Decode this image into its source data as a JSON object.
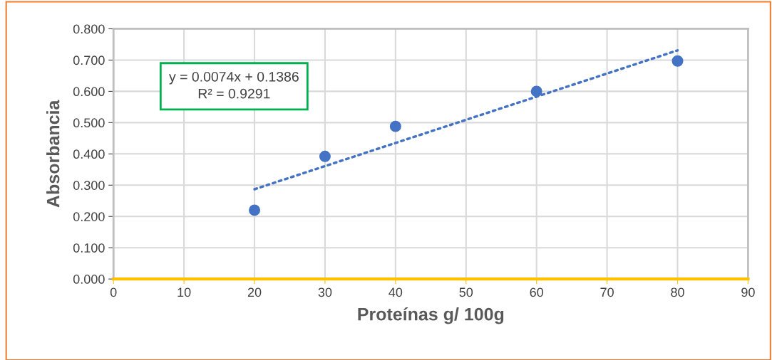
{
  "chart_data": {
    "type": "scatter",
    "xlabel": "Proteínas g/ 100g",
    "ylabel": "Absorbancia",
    "annotations": [
      "y = 0.0074x + 0.1386\nR² = 0.9291"
    ],
    "series": [
      {
        "color": "#4472c4",
        "marker": "circle",
        "x": [
          20,
          30,
          40,
          60,
          80
        ],
        "values": [
          0.22,
          0.392,
          0.488,
          0.6,
          0.697
        ]
      },
      {
        "type": "line",
        "color": "#4472c4",
        "marker": "none",
        "line_style": "dotted",
        "x": [
          20,
          80
        ],
        "values": [
          0.287,
          0.731
        ]
      }
    ],
    "xlim": [
      0,
      90
    ],
    "xticks": [
      0,
      10,
      20,
      30,
      40,
      50,
      60,
      70,
      80,
      90
    ],
    "ylim": [
      0,
      0.8
    ],
    "yticks": [
      {
        "value": 0,
        "label": "0.000"
      },
      {
        "value": 0.1,
        "label": "0.100"
      },
      {
        "value": 0.2,
        "label": "0.200"
      },
      {
        "value": 0.3,
        "label": "0.300"
      },
      {
        "value": 0.4,
        "label": "0.400"
      },
      {
        "value": 0.5,
        "label": "0.500"
      },
      {
        "value": 0.6,
        "label": "0.600"
      },
      {
        "value": 0.7,
        "label": "0.700"
      },
      {
        "value": 0.8,
        "label": "0.800"
      }
    ],
    "grid": true
  }
}
